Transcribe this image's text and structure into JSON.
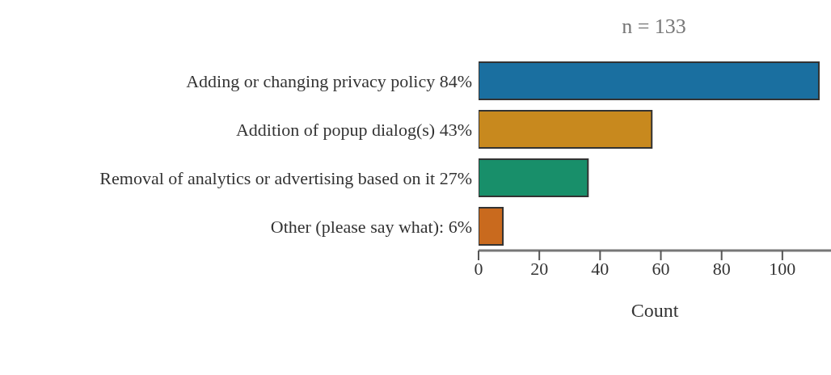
{
  "chart_data": {
    "type": "bar",
    "orientation": "horizontal",
    "title": "n = 133",
    "xlabel": "Count",
    "categories": [
      "Adding or changing privacy policy  84%",
      "Addition of popup dialog(s)  43%",
      "Removal of analytics or advertising based on it  27%",
      "Other (please say what):  6%"
    ],
    "values": [
      112,
      57,
      36,
      8
    ],
    "colors": [
      "#1a6fa0",
      "#c8891e",
      "#188f6a",
      "#c96a1e"
    ],
    "xlim": [
      0,
      116
    ],
    "xticks": [
      0,
      20,
      40,
      60,
      80,
      100
    ],
    "grid": false
  }
}
